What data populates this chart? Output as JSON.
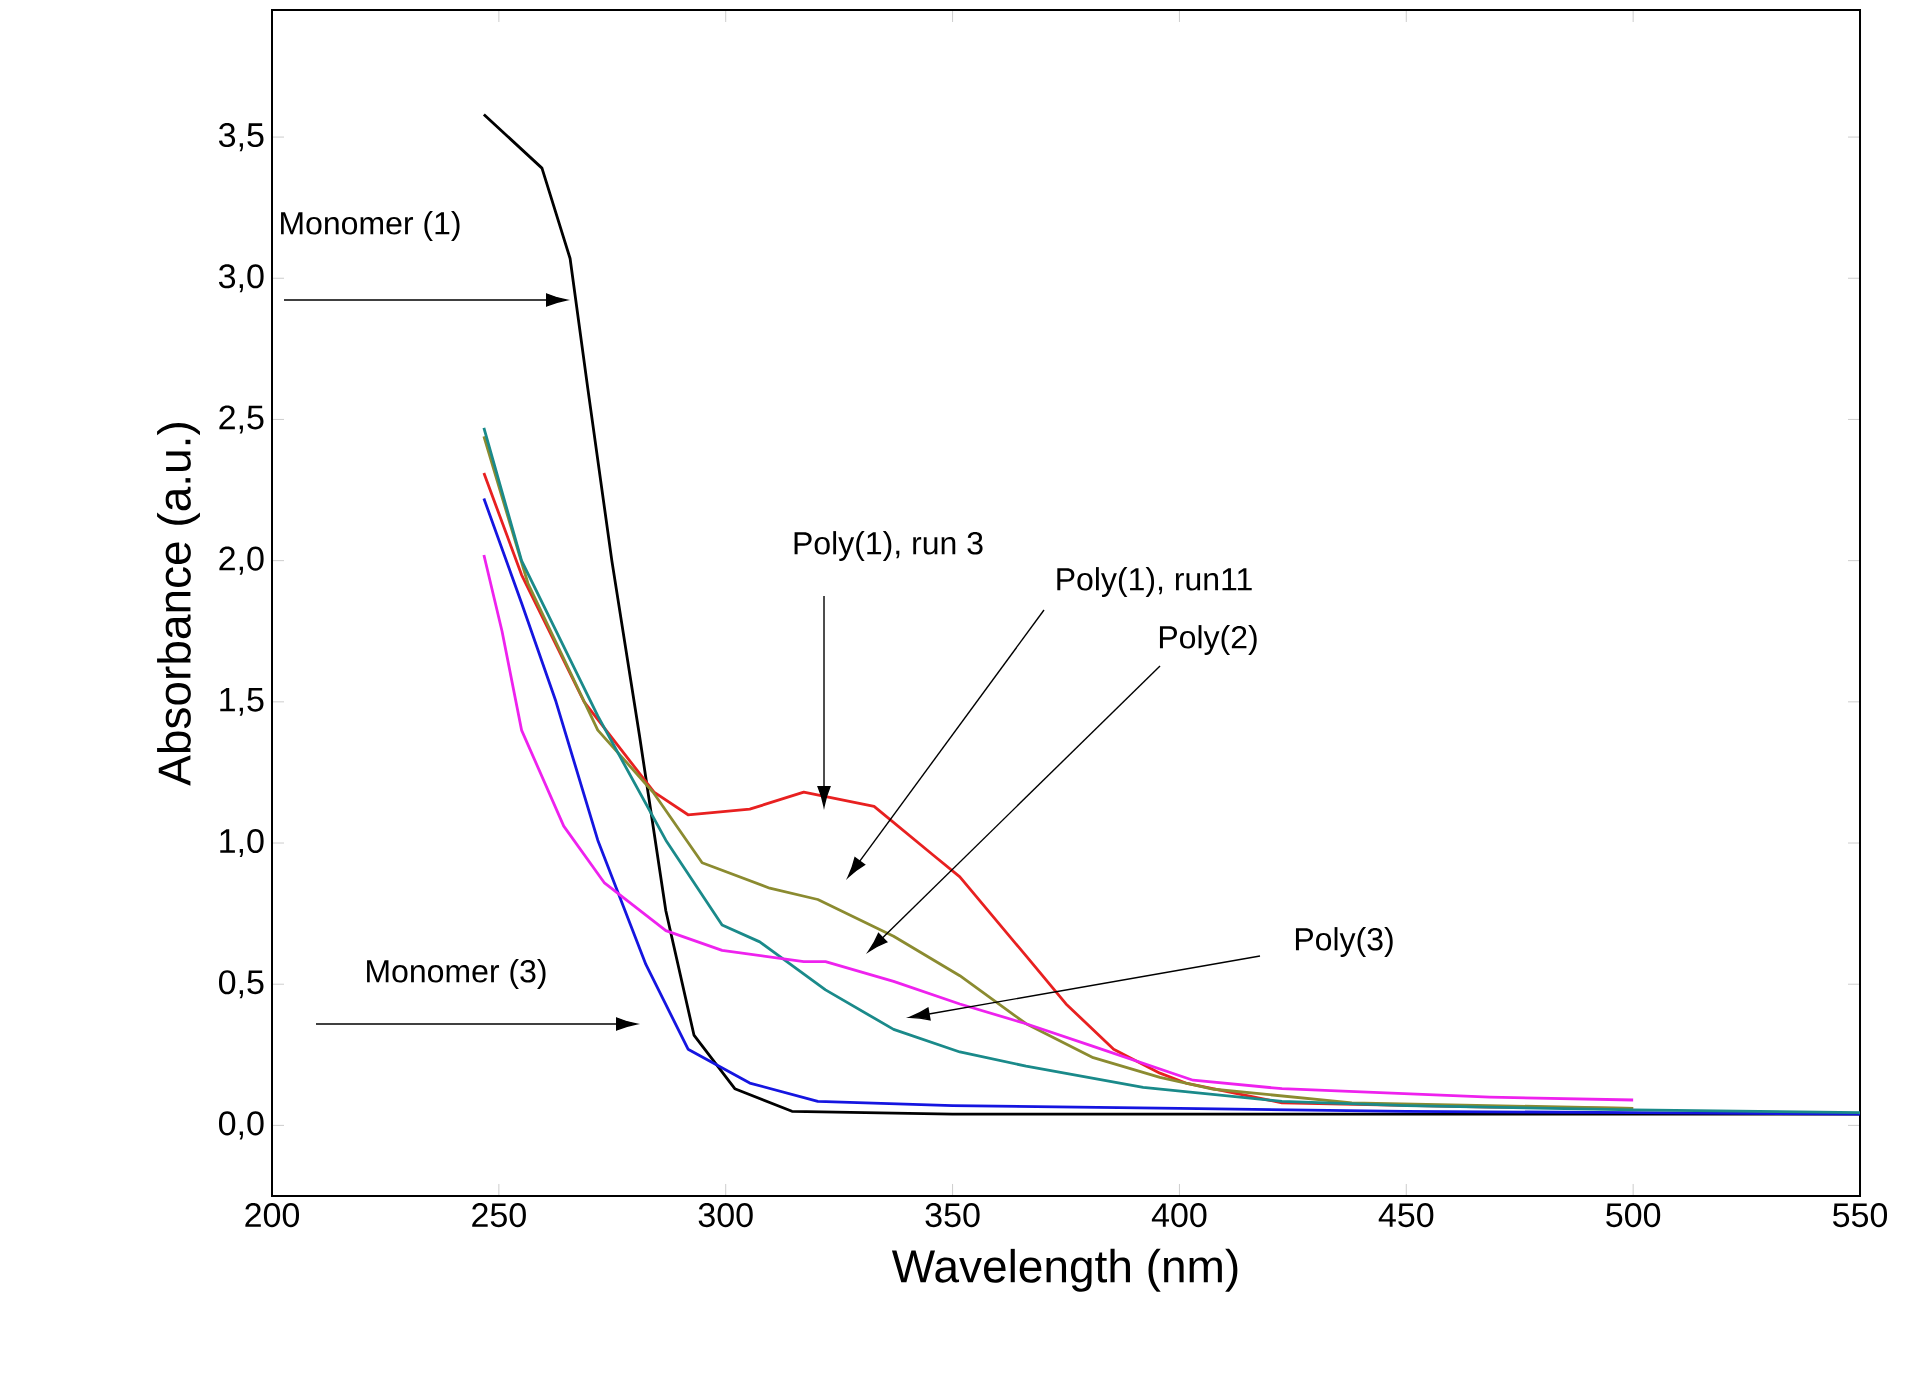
{
  "chart_data": {
    "type": "line",
    "xlabel": "Wavelength (nm)",
    "ylabel": "Absorbance (a.u.)",
    "xlim": [
      200,
      550
    ],
    "ylim": [
      -0.25,
      3.95
    ],
    "xticks": [
      200,
      250,
      300,
      350,
      400,
      450,
      500,
      550
    ],
    "yticks": [
      {
        "value": 0,
        "label": "0,0"
      },
      {
        "value": 0.5,
        "label": "0,5"
      },
      {
        "value": 1,
        "label": "1,0"
      },
      {
        "value": 1.5,
        "label": "1,5"
      },
      {
        "value": 2,
        "label": "2,0"
      },
      {
        "value": 2.5,
        "label": "2,5"
      },
      {
        "value": 3,
        "label": "3,0"
      },
      {
        "value": 3.5,
        "label": "3,5"
      }
    ],
    "grid": false,
    "marker": "none",
    "line_style": "solid",
    "series": [
      {
        "color": "#000000",
        "x": [
          246.7,
          259.5,
          265.7,
          269.6,
          274.9,
          281,
          286.8,
          293,
          302,
          314.6,
          350,
          400,
          450,
          500,
          550
        ],
        "values": [
          3.58,
          3.39,
          3.07,
          2.61,
          2.0,
          1.38,
          0.76,
          0.32,
          0.13,
          0.05,
          0.04,
          0.04,
          0.04,
          0.04,
          0.04
        ]
      },
      {
        "color": "#1515e0",
        "x": [
          246.7,
          255,
          262.6,
          271.8,
          282.4,
          291.7,
          305.3,
          320.3,
          350,
          400,
          450,
          500,
          550
        ],
        "values": [
          2.22,
          1.85,
          1.5,
          1.01,
          0.57,
          0.27,
          0.15,
          0.085,
          0.07,
          0.06,
          0.05,
          0.045,
          0.04
        ]
      },
      {
        "color": "#e82020",
        "x": [
          246.7,
          255,
          268.8,
          284.2,
          291.7,
          305.3,
          317.2,
          332.7,
          345.9,
          351.6,
          366.2,
          375,
          385.5,
          395.7,
          401.4,
          422.6,
          468.4,
          500
        ],
        "values": [
          2.31,
          1.95,
          1.5,
          1.18,
          1.1,
          1.12,
          1.18,
          1.13,
          0.955,
          0.88,
          0.6,
          0.43,
          0.27,
          0.185,
          0.15,
          0.08,
          0.065,
          0.06
        ]
      },
      {
        "color": "#8b8b30",
        "x": [
          246.7,
          256.4,
          271.8,
          284,
          294.8,
          309.7,
          320.3,
          337,
          351.6,
          366.2,
          381,
          395.7,
          407.6,
          438,
          500
        ],
        "values": [
          2.44,
          1.92,
          1.4,
          1.18,
          0.93,
          0.84,
          0.8,
          0.67,
          0.53,
          0.36,
          0.24,
          0.17,
          0.128,
          0.08,
          0.06
        ]
      },
      {
        "color": "#1a8a8a",
        "x": [
          246.7,
          255,
          271.8,
          286.8,
          299.2,
          307.5,
          322,
          337,
          351.6,
          366.2,
          392,
          422.6,
          450,
          500,
          550
        ],
        "values": [
          2.47,
          2.0,
          1.45,
          1.01,
          0.71,
          0.65,
          0.48,
          0.34,
          0.26,
          0.21,
          0.135,
          0.085,
          0.07,
          0.055,
          0.045
        ]
      },
      {
        "color": "#ee22ee",
        "x": [
          246.7,
          250.7,
          255,
          264.3,
          273.2,
          286.8,
          299.2,
          317.2,
          322,
          337,
          351.6,
          366.2,
          381,
          403,
          422.6,
          468.4,
          500
        ],
        "values": [
          2.02,
          1.75,
          1.4,
          1.06,
          0.86,
          0.69,
          0.62,
          0.58,
          0.58,
          0.51,
          0.43,
          0.36,
          0.28,
          0.16,
          0.13,
          0.1,
          0.09
        ]
      }
    ],
    "annotations": [
      "Monomer (1)",
      "Monomer (3)",
      "Poly(1), run 3",
      "Poly(1), run11",
      "Poly(2)",
      "Poly(3)"
    ]
  }
}
